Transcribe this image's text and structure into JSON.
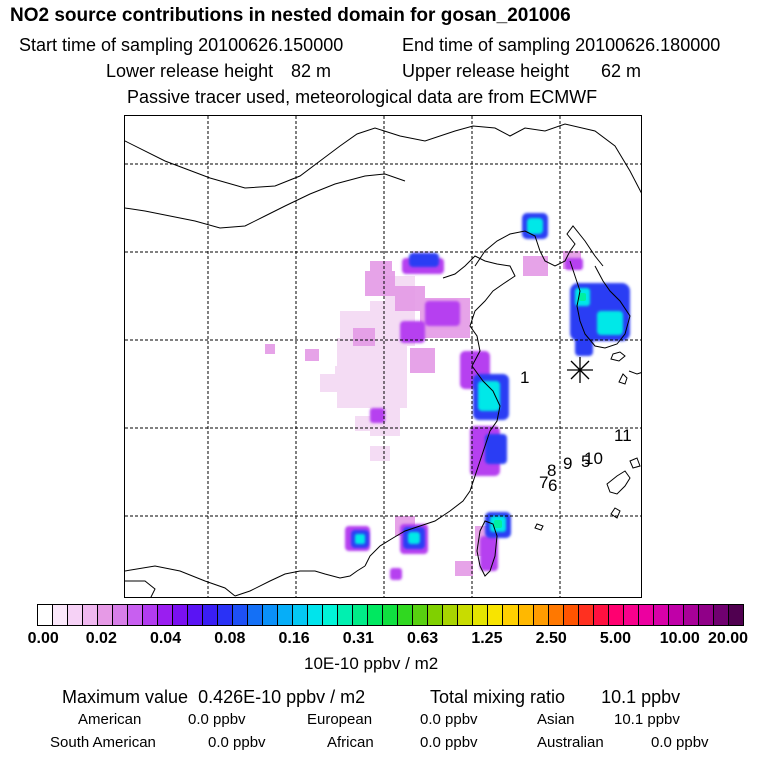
{
  "header": {
    "title": "NO2 source contributions in nested domain for gosan_201006",
    "start_label": "Start time of sampling 20100626.150000",
    "end_label": "End time of sampling 20100626.180000",
    "lower_label": "Lower release height",
    "lower_value": "82 m",
    "upper_label": "Upper release height",
    "upper_value": "62 m",
    "tracer_note": "Passive tracer used, meteorological data are from ECMWF"
  },
  "map": {
    "numbers": [
      "1",
      "11",
      "8",
      "9",
      "5",
      "10",
      "7",
      "6"
    ],
    "receptor_marker": "asterisk"
  },
  "colorbar": {
    "ticks": [
      "0.00",
      "0.02",
      "0.04",
      "0.08",
      "0.16",
      "0.31",
      "0.63",
      "1.25",
      "2.50",
      "5.00",
      "10.00",
      "20.00"
    ],
    "colors": [
      "#ffffff",
      "#fbe8fb",
      "#f6d2f6",
      "#f0b8f0",
      "#e69ae6",
      "#d77ee8",
      "#c85ff0",
      "#b23cf0",
      "#9a1ef0",
      "#7a10f0",
      "#5a14f4",
      "#3a1ef4",
      "#2a32f6",
      "#1e50f6",
      "#1470f6",
      "#0a90f8",
      "#06aef8",
      "#04c8f4",
      "#00e4ec",
      "#00f4d8",
      "#00f0b0",
      "#00ec88",
      "#00e860",
      "#10e040",
      "#30d820",
      "#58d010",
      "#80d000",
      "#a8d400",
      "#c8dc00",
      "#e4e400",
      "#f8e400",
      "#ffd000",
      "#ffb800",
      "#ff9c00",
      "#ff7800",
      "#ff5400",
      "#ff3020",
      "#ff1040",
      "#ff0070",
      "#f8008c",
      "#ec00a0",
      "#d800a8",
      "#c000a8",
      "#a80098",
      "#900088",
      "#700070",
      "#500050"
    ],
    "units": "10E-10 ppbv / m2"
  },
  "summary": {
    "max_label": "Maximum value",
    "max_value": "0.426E-10 ppbv / m2",
    "total_label": "Total mixing ratio",
    "total_value": "10.1 ppbv",
    "regions": [
      {
        "name": "American",
        "value": "0.0 ppbv"
      },
      {
        "name": "European",
        "value": "0.0 ppbv"
      },
      {
        "name": "Asian",
        "value": "10.1 ppbv"
      },
      {
        "name": "South American",
        "value": "0.0 ppbv"
      },
      {
        "name": "African",
        "value": "0.0 ppbv"
      },
      {
        "name": "Australian",
        "value": "0.0 ppbv"
      }
    ]
  }
}
